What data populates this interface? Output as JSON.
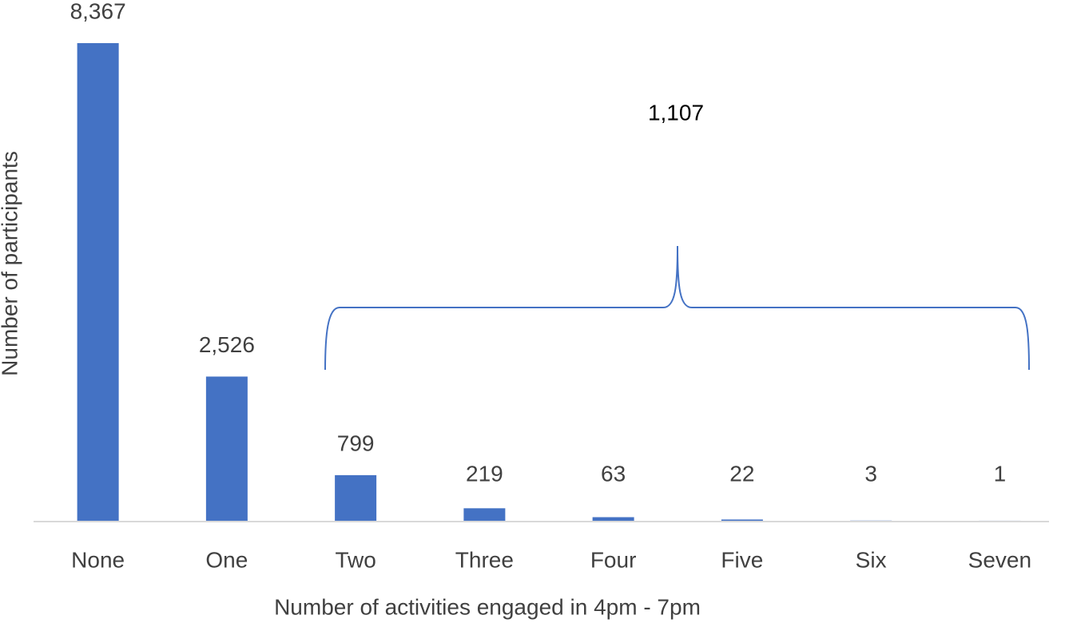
{
  "chart_data": {
    "type": "bar",
    "x_label": "Number of activities engaged in 4pm - 7pm",
    "y_label": "Number of participants",
    "categories": [
      "None",
      "One",
      "Two",
      "Three",
      "Four",
      "Five",
      "Six",
      "Seven"
    ],
    "values": [
      8367,
      2526,
      799,
      219,
      63,
      22,
      3,
      1
    ],
    "value_labels": [
      "8,367",
      "2,526",
      "799",
      "219",
      "63",
      "22",
      "3",
      "1"
    ],
    "color": "#4472c4",
    "annotation": "1,107"
  }
}
